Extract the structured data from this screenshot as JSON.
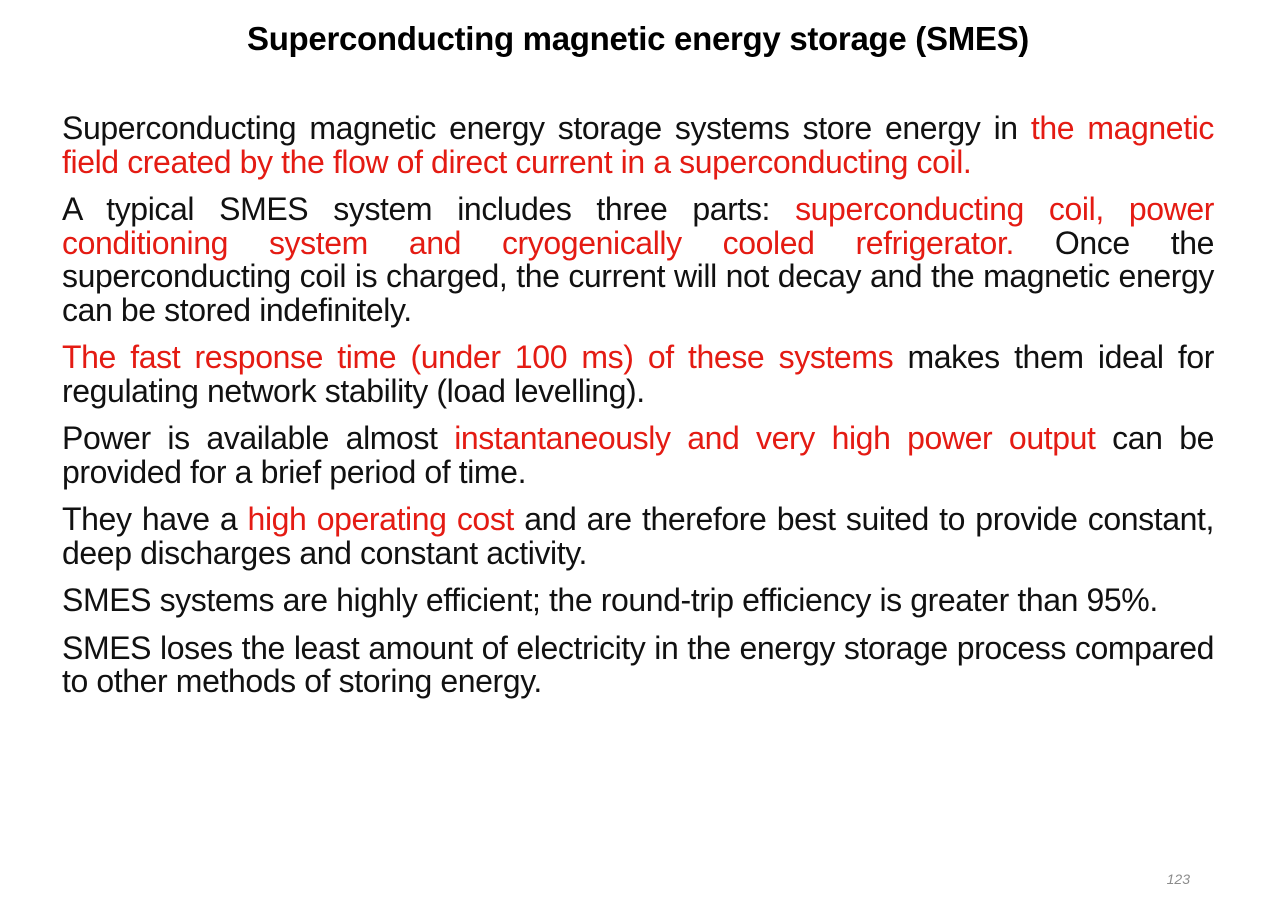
{
  "slide": {
    "title": "Superconducting magnetic energy storage (SMES)",
    "page_number": "123",
    "highlight_color": "#e41b13",
    "text_color": "#111111",
    "paragraphs": [
      {
        "segments": [
          {
            "text": "Superconducting magnetic energy storage systems store energy in ",
            "highlight": false
          },
          {
            "text": "the magnetic field created by the flow of direct current in a superconducting coil.",
            "highlight": true
          }
        ]
      },
      {
        "segments": [
          {
            "text": "A typical SMES system includes three parts: ",
            "highlight": false
          },
          {
            "text": "superconducting coil, power conditioning system and cryogenically cooled refrigerator.",
            "highlight": true
          },
          {
            "text": " Once the superconducting coil is charged, the current will not decay and the magnetic energy can be stored indefinitely.",
            "highlight": false
          }
        ]
      },
      {
        "segments": [
          {
            "text": "The fast response time (under 100 ms) of these systems",
            "highlight": true
          },
          {
            "text": " makes them ideal for regulating network stability (load levelling).",
            "highlight": false
          }
        ]
      },
      {
        "segments": [
          {
            "text": "Power is available almost ",
            "highlight": false
          },
          {
            "text": "instantaneously and very high power output",
            "highlight": true
          },
          {
            "text": " can be provided for a brief period of time.",
            "highlight": false
          }
        ]
      },
      {
        "segments": [
          {
            "text": "They have a ",
            "highlight": false
          },
          {
            "text": "high operating cost",
            "highlight": true
          },
          {
            "text": " and are therefore best suited to provide constant, deep discharges and constant activity.",
            "highlight": false
          }
        ]
      },
      {
        "segments": [
          {
            "text": "SMES systems are highly efficient; the round-trip efficiency is greater than 95%.",
            "highlight": false
          }
        ]
      },
      {
        "segments": [
          {
            "text": "SMES loses the least amount of electricity in the energy storage process compared to other methods of storing energy.",
            "highlight": false
          }
        ]
      }
    ]
  }
}
